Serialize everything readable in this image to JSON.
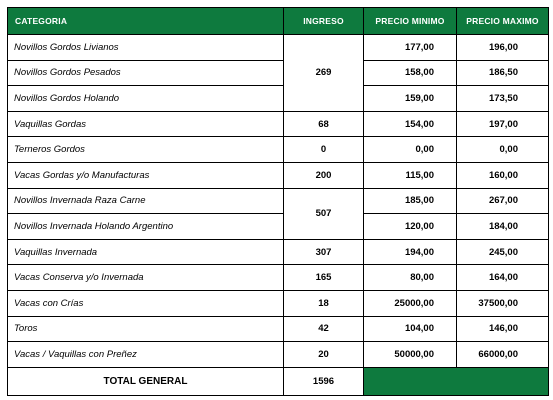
{
  "headers": {
    "categoria": "CATEGORIA",
    "ingreso": "INGRESO",
    "precio_minimo": "PRECIO MINIMO",
    "precio_maximo": "PRECIO MAXIMO"
  },
  "rows": [
    {
      "categoria": "Novillos Gordos Livianos",
      "ingreso": "269",
      "min": "177,00",
      "max": "196,00"
    },
    {
      "categoria": "Novillos Gordos Pesados",
      "min": "158,00",
      "max": "186,50"
    },
    {
      "categoria": "Novillos Gordos Holando",
      "min": "159,00",
      "max": "173,50"
    },
    {
      "categoria": "Vaquillas Gordas",
      "ingreso": "68",
      "min": "154,00",
      "max": "197,00"
    },
    {
      "categoria": "Terneros Gordos",
      "ingreso": "0",
      "min": "0,00",
      "max": "0,00"
    },
    {
      "categoria": "Vacas Gordas y/o Manufacturas",
      "ingreso": "200",
      "min": "115,00",
      "max": "160,00"
    },
    {
      "categoria": "Novillos Invernada Raza Carne",
      "ingreso": "507",
      "min": "185,00",
      "max": "267,00"
    },
    {
      "categoria": "Novillos Invernada Holando Argentino",
      "min": "120,00",
      "max": "184,00"
    },
    {
      "categoria": "Vaquillas Invernada",
      "ingreso": "307",
      "min": "194,00",
      "max": "245,00"
    },
    {
      "categoria": "Vacas Conserva y/o Invernada",
      "ingreso": "165",
      "min": "80,00",
      "max": "164,00"
    },
    {
      "categoria": "Vacas con Crías",
      "ingreso": "18",
      "min": "25000,00",
      "max": "37500,00"
    },
    {
      "categoria": "Toros",
      "ingreso": "42",
      "min": "104,00",
      "max": "146,00"
    },
    {
      "categoria": "Vacas / Vaquillas con Preñez",
      "ingreso": "20",
      "min": "50000,00",
      "max": "66000,00"
    }
  ],
  "total": {
    "label": "TOTAL GENERAL",
    "value": "1596"
  },
  "colors": {
    "header_green": "#0e7a3e"
  }
}
